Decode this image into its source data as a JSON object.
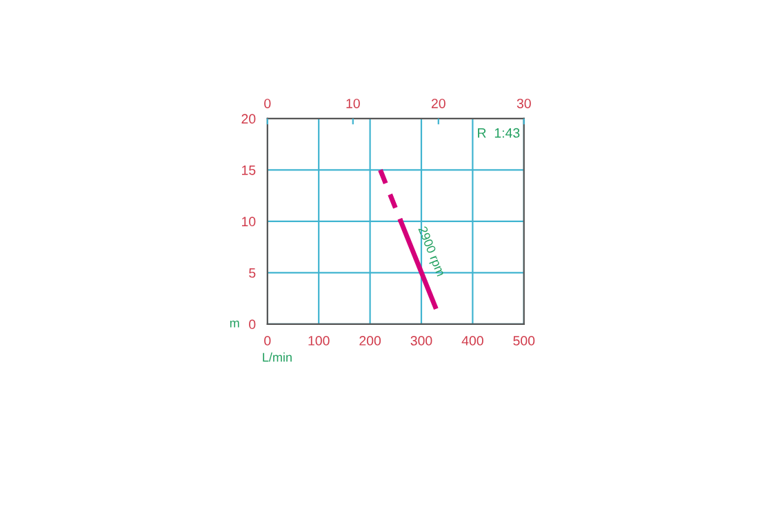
{
  "chart_data": {
    "type": "line",
    "xlabel": "L/min",
    "ylabel": "m",
    "annotations": [
      "R  1:43"
    ],
    "xlim": [
      0,
      500
    ],
    "xticks": [
      0,
      100,
      200,
      300,
      400,
      500
    ],
    "ylim": [
      0,
      20
    ],
    "yticks": [
      0,
      5,
      10,
      15,
      20
    ],
    "x2lim": [
      0,
      30
    ],
    "x2ticks": [
      0,
      10,
      20,
      30
    ],
    "grid": true,
    "legend": false,
    "marker": "none",
    "series": [
      {
        "color": "#d4007a",
        "line_style": "dashed",
        "x": [
          220,
          260
        ],
        "values": [
          15,
          10
        ]
      },
      {
        "name": "2900 rpm",
        "color": "#d4007a",
        "line_style": "solid",
        "x": [
          260,
          327
        ],
        "values": [
          10,
          1.7
        ]
      }
    ]
  }
}
